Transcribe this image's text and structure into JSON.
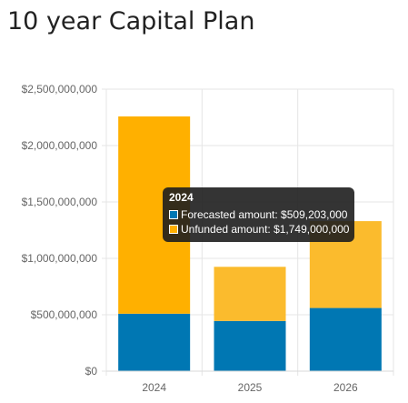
{
  "page": {
    "title": "10 year Capital Plan"
  },
  "chart_data": {
    "type": "bar",
    "stacked": true,
    "title": "",
    "xlabel": "",
    "ylabel": "",
    "categories": [
      "2024",
      "2025",
      "2026"
    ],
    "ylim": [
      0,
      2500000000
    ],
    "yticks": [
      0,
      500000000,
      1000000000,
      1500000000,
      2000000000,
      2500000000
    ],
    "ytick_labels": [
      "$0",
      "$500,000,000",
      "$1,000,000,000",
      "$1,500,000,000",
      "$2,000,000,000",
      "$2,500,000,000"
    ],
    "grid": true,
    "legend": "none",
    "series": [
      {
        "name": "Forecasted amount",
        "color": "#0077b3",
        "values": [
          509203000,
          445000000,
          560000000
        ]
      },
      {
        "name": "Unfunded amount",
        "colors": [
          "#ffb000",
          "#fbbb2d",
          "#fbbb2d"
        ],
        "values": [
          1749000000,
          480000000,
          770000000
        ]
      }
    ]
  },
  "tooltip": {
    "title": "2024",
    "rows": [
      {
        "label": "Forecasted amount: $509,203,000",
        "color": "#0077b3"
      },
      {
        "label": "Unfunded amount: $1,749,000,000",
        "color": "#ffb000"
      }
    ]
  }
}
